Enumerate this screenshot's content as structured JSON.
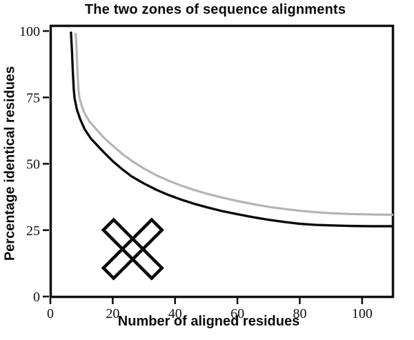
{
  "figure": {
    "title": "The two zones of sequence alignments",
    "x_axis": {
      "label": "Number of aligned residues",
      "tick_labels": [
        "0",
        "20",
        "40",
        "60",
        "80",
        "100"
      ]
    },
    "y_axis": {
      "label": "Percentage identical residues",
      "tick_labels": [
        "0",
        "25",
        "50",
        "75",
        "100"
      ]
    }
  },
  "chart_data": {
    "type": "line",
    "title": "The two zones of sequence alignments",
    "xlabel": "Number of aligned residues",
    "ylabel": "Percentage identical residues",
    "xlim": [
      0,
      110
    ],
    "ylim": [
      0,
      100
    ],
    "x_ticks": [
      0,
      20,
      40,
      60,
      80,
      100
    ],
    "y_ticks": [
      0,
      25,
      50,
      75,
      100
    ],
    "grid": false,
    "legend": "none",
    "series": [
      {
        "name": "gray curve (upper)",
        "color": "#b5b5ad",
        "line_width": 3.2,
        "points": [
          [
            8.1,
            99.3
          ],
          [
            8.4,
            93
          ],
          [
            8.7,
            85
          ],
          [
            9.0,
            78
          ],
          [
            9.3,
            75
          ],
          [
            10,
            72
          ],
          [
            11,
            69
          ],
          [
            12.5,
            66
          ],
          [
            14.5,
            63.3
          ],
          [
            17,
            60
          ],
          [
            20,
            56.8
          ],
          [
            23,
            53.8
          ],
          [
            26,
            51.2
          ],
          [
            30,
            48.2
          ],
          [
            34,
            45.7
          ],
          [
            38,
            43.6
          ],
          [
            42,
            41.8
          ],
          [
            46,
            40.2
          ],
          [
            50,
            38.8
          ],
          [
            55,
            37.3
          ],
          [
            60,
            36
          ],
          [
            65,
            34.8
          ],
          [
            70,
            33.8
          ],
          [
            75,
            33
          ],
          [
            80,
            32.3
          ],
          [
            85,
            31.8
          ],
          [
            90,
            31.4
          ],
          [
            96,
            31.1
          ],
          [
            103,
            30.9
          ],
          [
            110,
            30.8
          ]
        ]
      },
      {
        "name": "black curve (lower)",
        "color": "#0a0a0a",
        "line_width": 3.4,
        "points": [
          [
            6.6,
            99.8
          ],
          [
            6.9,
            93
          ],
          [
            7.2,
            85
          ],
          [
            7.5,
            78
          ],
          [
            7.8,
            74.5
          ],
          [
            8.5,
            70.5
          ],
          [
            9.5,
            67
          ],
          [
            11,
            63
          ],
          [
            13,
            59.5
          ],
          [
            15,
            57
          ],
          [
            17,
            54.5
          ],
          [
            20,
            51
          ],
          [
            23,
            48
          ],
          [
            26,
            45.3
          ],
          [
            30,
            42.6
          ],
          [
            34,
            40.2
          ],
          [
            38,
            38.2
          ],
          [
            42,
            36.5
          ],
          [
            46,
            35
          ],
          [
            50,
            33.7
          ],
          [
            55,
            32.2
          ],
          [
            60,
            31
          ],
          [
            65,
            29.9
          ],
          [
            70,
            28.9
          ],
          [
            75,
            28.1
          ],
          [
            80,
            27.4
          ],
          [
            85,
            27
          ],
          [
            90,
            26.8
          ],
          [
            96,
            26.6
          ],
          [
            103,
            26.5
          ],
          [
            110,
            26.5
          ]
        ]
      }
    ],
    "annotations": [
      {
        "type": "marker",
        "shape": "outlined-cross-x",
        "x": 26.4,
        "y": 17.9,
        "stroke_color": "#0a0a0a",
        "fill": "none"
      }
    ],
    "frame": {
      "color": "#111111",
      "background": "#ffffff"
    }
  }
}
